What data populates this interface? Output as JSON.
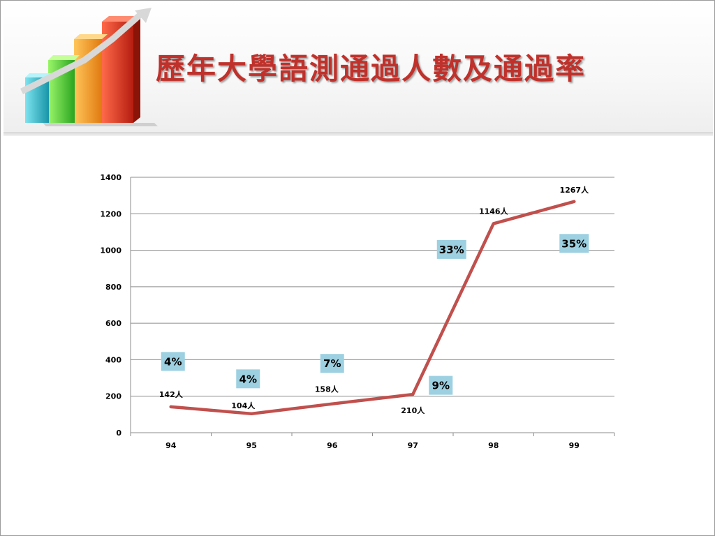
{
  "title": "歷年大學語測通過人數及通過率",
  "icons": {
    "logo": "bar-chart-arrow-icon"
  },
  "colors": {
    "title": "#c0312b",
    "line": "#c0504d",
    "rate_box": "#9dd0e1",
    "grid": "#8c8c8c"
  },
  "chart_data": {
    "type": "line",
    "categories": [
      "94",
      "95",
      "96",
      "97",
      "98",
      "99"
    ],
    "series": [
      {
        "values": [
          142,
          104,
          158,
          210,
          1146,
          1267
        ]
      }
    ],
    "value_labels": [
      "142人",
      "104人",
      "158人",
      "210人",
      "1146人",
      "1267人"
    ],
    "rate_labels": [
      "4%",
      "4%",
      "7%",
      "9%",
      "33%",
      "35%"
    ],
    "ylim": [
      0,
      1400
    ],
    "yticks": [
      0,
      200,
      400,
      600,
      800,
      1000,
      1200,
      1400
    ],
    "grid": true,
    "legend": "none"
  }
}
